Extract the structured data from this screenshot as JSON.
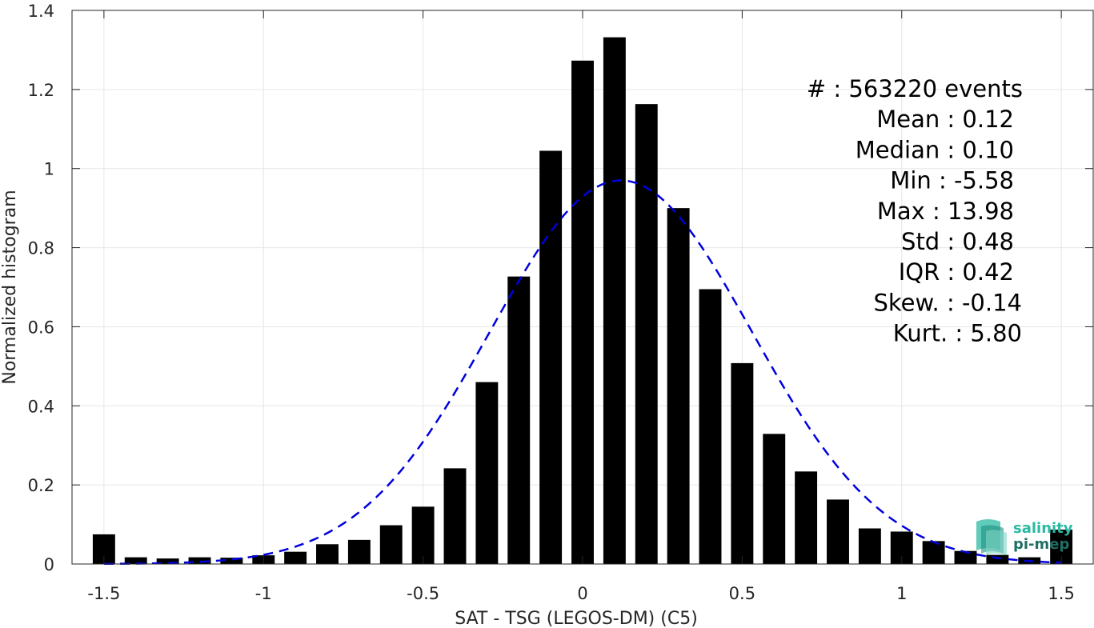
{
  "chart_data": {
    "type": "bar",
    "xlabel": "SAT - TSG (LEGOS-DM) (C5)",
    "ylabel": "Normalized histogram",
    "xlim": [
      -1.6,
      1.6
    ],
    "ylim": [
      0,
      1.4
    ],
    "xticks": [
      -1.5,
      -1,
      -0.5,
      0,
      0.5,
      1,
      1.5
    ],
    "xtick_labels": [
      "-1.5",
      "-1",
      "-0.5",
      "0",
      "0.5",
      "1",
      "1.5"
    ],
    "yticks": [
      0,
      0.2,
      0.4,
      0.6,
      0.8,
      1,
      1.2,
      1.4
    ],
    "ytick_labels": [
      "0",
      "0.2",
      "0.4",
      "0.6",
      "0.8",
      "1",
      "1.2",
      "1.4"
    ],
    "grid": true,
    "bar_color": "#000000",
    "x": [
      -1.5,
      -1.4,
      -1.3,
      -1.2,
      -1.1,
      -1.0,
      -0.9,
      -0.8,
      -0.7,
      -0.6,
      -0.5,
      -0.4,
      -0.3,
      -0.2,
      -0.1,
      0.0,
      0.1,
      0.2,
      0.3,
      0.4,
      0.5,
      0.6,
      0.7,
      0.8,
      0.9,
      1.0,
      1.1,
      1.2,
      1.3,
      1.4,
      1.5
    ],
    "values": [
      0.075,
      0.017,
      0.014,
      0.017,
      0.016,
      0.022,
      0.031,
      0.05,
      0.061,
      0.098,
      0.145,
      0.242,
      0.46,
      0.727,
      1.045,
      1.273,
      1.332,
      1.163,
      0.9,
      0.695,
      0.508,
      0.329,
      0.234,
      0.163,
      0.09,
      0.082,
      0.058,
      0.033,
      0.023,
      0.017,
      0.087
    ],
    "fit": {
      "name": "Gaussian fit",
      "color": "#0000dd",
      "style": "dashed",
      "mean": 0.12,
      "std": 0.41,
      "peak": 0.97
    },
    "stats": [
      {
        "label": "#  : 563220 events"
      },
      {
        "label": "Mean : 0.12"
      },
      {
        "label": "Median : 0.10"
      },
      {
        "label": "Min : -5.58"
      },
      {
        "label": "Max : 13.98"
      },
      {
        "label": "Std : 0.48"
      },
      {
        "label": "IQR : 0.42"
      },
      {
        "label": "Skew. : -0.14"
      },
      {
        "label": "Kurt. : 5.80"
      }
    ]
  },
  "logo": {
    "line1": "salinity",
    "line2": "pi-mep",
    "color1": "#2bb9a3",
    "color2": "#1f6f63"
  }
}
